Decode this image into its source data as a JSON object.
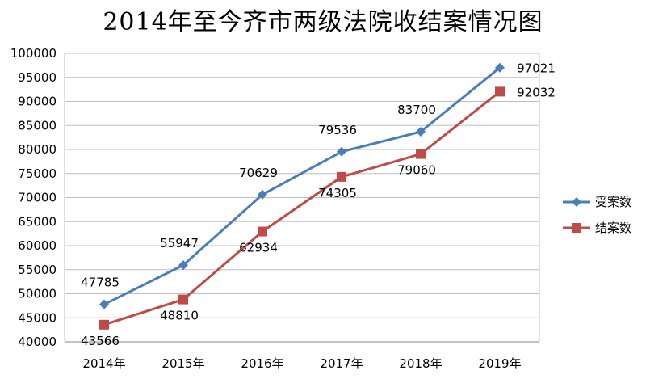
{
  "chart_data": {
    "type": "line",
    "title": "2014年至今齐市两级法院收结案情况图",
    "xlabel": "",
    "ylabel": "",
    "categories": [
      "2014年",
      "2015年",
      "2016年",
      "2017年",
      "2018年",
      "2019年"
    ],
    "ylim": [
      40000,
      100000
    ],
    "ytick_step": 5000,
    "grid": true,
    "legend_position": "right",
    "series": [
      {
        "name": "受案数",
        "values": [
          47785,
          55947,
          70629,
          79536,
          83700,
          97021
        ],
        "color": "#4A7EBB",
        "marker": "diamond"
      },
      {
        "name": "结案数",
        "values": [
          43566,
          48810,
          62934,
          74305,
          79060,
          92032
        ],
        "color": "#BE4B48",
        "marker": "square"
      }
    ]
  }
}
